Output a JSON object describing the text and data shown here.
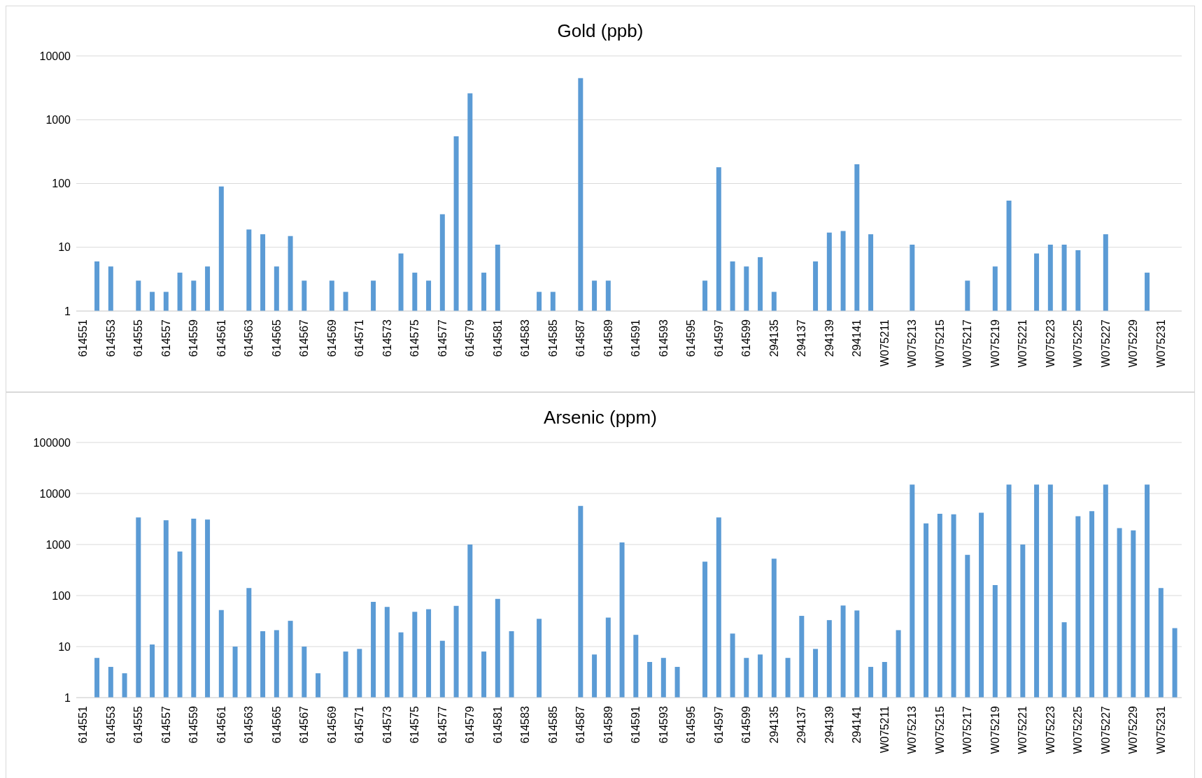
{
  "chart_data": [
    {
      "type": "bar",
      "title": "Gold (ppb)",
      "color": "#5b9bd5",
      "log": true,
      "grid": "y",
      "ylim": [
        1,
        10000
      ],
      "yticks": [
        1,
        10,
        100,
        1000,
        10000
      ],
      "categories": [
        "614551",
        null,
        "614553",
        null,
        "614555",
        null,
        "614557",
        null,
        "614559",
        null,
        "614561",
        null,
        "614563",
        null,
        "614565",
        null,
        "614567",
        null,
        "614569",
        null,
        "614571",
        null,
        "614573",
        null,
        "614575",
        null,
        "614577",
        null,
        "614579",
        null,
        "614581",
        null,
        "614583",
        null,
        "614585",
        null,
        "614587",
        null,
        "614589",
        null,
        "614591",
        null,
        "614593",
        null,
        "614595",
        null,
        "614597",
        null,
        "614599",
        null,
        "294135",
        null,
        "294137",
        null,
        "294139",
        null,
        "294141",
        null,
        "W075211",
        null,
        "W075213",
        null,
        "W075215",
        null,
        "W075217",
        null,
        "W075219",
        null,
        "W075221",
        null,
        "W075223",
        null,
        "W075225",
        null,
        "W075227",
        null,
        "W075229",
        null,
        "W075231",
        null
      ],
      "values": [
        null,
        6,
        5,
        null,
        3,
        2,
        2,
        4,
        3,
        5,
        90,
        null,
        19,
        16,
        5,
        15,
        3,
        null,
        3,
        2,
        null,
        3,
        null,
        8,
        4,
        3,
        33,
        550,
        2600,
        4,
        11,
        null,
        null,
        2,
        2,
        null,
        4500,
        3,
        3,
        null,
        null,
        null,
        null,
        null,
        null,
        3,
        180,
        6,
        5,
        7,
        2,
        null,
        null,
        6,
        17,
        18,
        200,
        16,
        null,
        null,
        11,
        null,
        null,
        null,
        3,
        null,
        5,
        54,
        null,
        8,
        11,
        11,
        9,
        null,
        16,
        null,
        null,
        4,
        null,
        null
      ]
    },
    {
      "type": "bar",
      "title": "Arsenic (ppm)",
      "color": "#5b9bd5",
      "log": true,
      "grid": "y",
      "ylim": [
        1,
        100000
      ],
      "yticks": [
        1,
        10,
        100,
        1000,
        10000,
        100000
      ],
      "categories": [
        "614551",
        null,
        "614553",
        null,
        "614555",
        null,
        "614557",
        null,
        "614559",
        null,
        "614561",
        null,
        "614563",
        null,
        "614565",
        null,
        "614567",
        null,
        "614569",
        null,
        "614571",
        null,
        "614573",
        null,
        "614575",
        null,
        "614577",
        null,
        "614579",
        null,
        "614581",
        null,
        "614583",
        null,
        "614585",
        null,
        "614587",
        null,
        "614589",
        null,
        "614591",
        null,
        "614593",
        null,
        "614595",
        null,
        "614597",
        null,
        "614599",
        null,
        "294135",
        null,
        "294137",
        null,
        "294139",
        null,
        "294141",
        null,
        "W075211",
        null,
        "W075213",
        null,
        "W075215",
        null,
        "W075217",
        null,
        "W075219",
        null,
        "W075221",
        null,
        "W075223",
        null,
        "W075225",
        null,
        "W075227",
        null,
        "W075229",
        null,
        "W075231",
        null
      ],
      "values": [
        null,
        6,
        4,
        3,
        3400,
        11,
        3000,
        730,
        3200,
        3100,
        52,
        10,
        140,
        20,
        21,
        32,
        10,
        3,
        null,
        8,
        9,
        75,
        60,
        19,
        48,
        54,
        13,
        63,
        1000,
        8,
        86,
        20,
        null,
        35,
        null,
        null,
        5700,
        7,
        37,
        1100,
        17,
        5,
        6,
        4,
        null,
        460,
        3400,
        18,
        6,
        7,
        530,
        6,
        40,
        9,
        33,
        64,
        51,
        4,
        5,
        21,
        15000,
        2600,
        4000,
        3900,
        630,
        4200,
        160,
        15000,
        1000,
        15000,
        15000,
        30,
        3600,
        4500,
        15000,
        2100,
        1900,
        15000,
        140,
        23
      ]
    }
  ]
}
